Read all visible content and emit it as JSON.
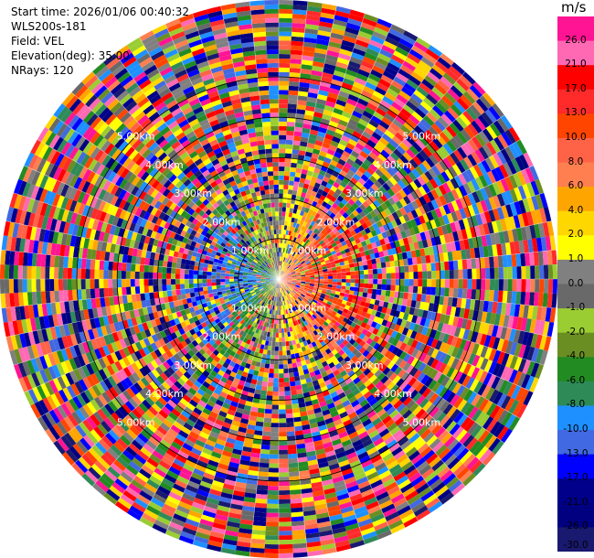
{
  "header": {
    "start_time": "Start time: 2026/01/06 00:40:32",
    "instrument": "WLS200s-181",
    "field": "Field: VEL",
    "elevation": "Elevation(deg): 35.00",
    "nrays": "NRays: 120"
  },
  "chart_data": {
    "type": "heatmap",
    "subtype": "ppi-polar",
    "field": "VEL",
    "units": "m/s",
    "nrays": 120,
    "elevation_deg": 35.0,
    "range_rings_km": [
      1.0,
      2.0,
      3.0,
      4.0,
      5.0
    ],
    "ring_labels": [
      "1.00km",
      "2.00km",
      "3.00km",
      "4.00km",
      "5.00km"
    ],
    "max_range_km": 6.9,
    "gates_per_ray": 62,
    "colorbar": {
      "label": "m/s",
      "ticks": [
        "26.0",
        "21.0",
        "17.0",
        "13.0",
        "10.0",
        "8.0",
        "6.0",
        "4.0",
        "2.0",
        "1.0",
        "0.0",
        "-1.0",
        "-2.0",
        "-4.0",
        "-6.0",
        "-8.0",
        "-10.0",
        "-13.0",
        "-17.0",
        "-21.0",
        "-26.0",
        "-30.0"
      ],
      "colors": [
        "#ff1493",
        "#ff69b4",
        "#ff0000",
        "#ff2a2a",
        "#ff4500",
        "#ff6347",
        "#ff7f50",
        "#ffa500",
        "#ffd700",
        "#ffff00",
        "#808080",
        "#696969",
        "#9acd32",
        "#6b8e23",
        "#228b22",
        "#2e8b57",
        "#1e90ff",
        "#4169e1",
        "#0000ff",
        "#00008b",
        "#000080",
        "#191970"
      ]
    },
    "near_field_pattern": {
      "towards_east": "warm (positive)",
      "towards_west": "cool (negative)",
      "near_range_km": 2.3
    }
  }
}
